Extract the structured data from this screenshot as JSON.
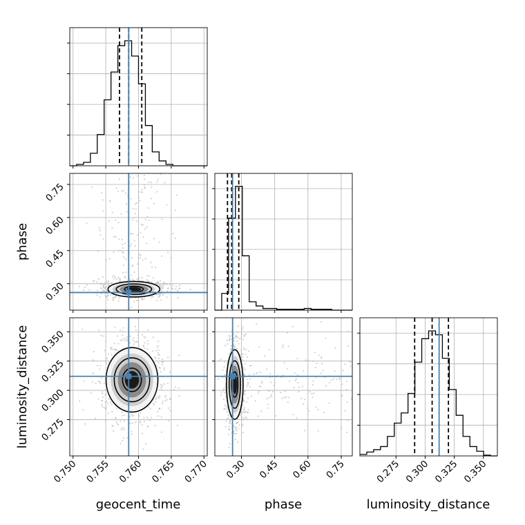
{
  "chart_data": {
    "type": "corner",
    "parameters": [
      "geocent_time",
      "phase",
      "luminosity_distance"
    ],
    "truths": {
      "geocent_time": 0.7585,
      "phase": 0.26,
      "luminosity_distance": 0.312
    },
    "quantiles": {
      "geocent_time": [
        0.7571,
        0.7585,
        0.7605
      ],
      "phase": [
        0.237,
        0.256,
        0.288
      ],
      "luminosity_distance": [
        0.291,
        0.306,
        0.32
      ]
    },
    "axes": {
      "geocent_time": {
        "lim": [
          0.7495,
          0.7705
        ],
        "ticks": [
          0.75,
          0.755,
          0.76,
          0.765,
          0.77
        ],
        "tick_labels": [
          "0.750",
          "0.755",
          "0.760",
          "0.765",
          "0.770"
        ]
      },
      "phase": {
        "lim": [
          0.18,
          0.8
        ],
        "ticks": [
          0.3,
          0.45,
          0.6,
          0.75
        ],
        "tick_labels": [
          "0.30",
          "0.45",
          "0.60",
          "0.75"
        ]
      },
      "luminosity_distance": {
        "lim": [
          0.244,
          0.362
        ],
        "ticks": [
          0.275,
          0.3,
          0.325,
          0.35
        ],
        "tick_labels": [
          "0.275",
          "0.300",
          "0.325",
          "0.350"
        ]
      }
    },
    "histograms": {
      "geocent_time": {
        "bin_edges": [
          0.7495,
          0.75055,
          0.7516,
          0.75265,
          0.7537,
          0.75475,
          0.7558,
          0.75685,
          0.7579,
          0.75895,
          0.76,
          0.76105,
          0.7621,
          0.76315,
          0.7642,
          0.76525,
          0.7663,
          0.76735,
          0.7684,
          0.76945,
          0.7705
        ],
        "counts": [
          0,
          2,
          5,
          18,
          45,
          95,
          135,
          173,
          180,
          158,
          118,
          58,
          20,
          7,
          2,
          0,
          0,
          0,
          0,
          0
        ]
      },
      "phase": {
        "bin_edges": [
          0.18,
          0.211,
          0.242,
          0.273,
          0.304,
          0.335,
          0.366,
          0.397,
          0.428,
          0.459,
          0.49,
          0.521,
          0.552,
          0.583,
          0.614,
          0.645,
          0.676,
          0.707,
          0.738,
          0.769,
          0.8
        ],
        "counts": [
          0,
          20,
          110,
          148,
          65,
          10,
          5,
          2,
          2,
          1,
          1,
          1,
          1,
          2,
          1,
          1,
          1,
          0,
          0,
          0
        ]
      },
      "luminosity_distance": {
        "bin_edges": [
          0.244,
          0.2499,
          0.2558,
          0.2617,
          0.2676,
          0.2735,
          0.2794,
          0.2853,
          0.2912,
          0.2971,
          0.303,
          0.3089,
          0.3148,
          0.3207,
          0.3266,
          0.3325,
          0.3384,
          0.3443,
          0.3502,
          0.3561,
          0.362
        ],
        "counts": [
          2,
          5,
          8,
          12,
          25,
          42,
          55,
          80,
          120,
          150,
          160,
          155,
          125,
          85,
          52,
          25,
          12,
          6,
          1,
          0
        ]
      }
    },
    "grid": true,
    "colors": {
      "truth": "#4682b4",
      "contour": "#000000",
      "histogram": "#000000",
      "points": "#bdbdbd",
      "grid": "#b0b0b0"
    }
  }
}
